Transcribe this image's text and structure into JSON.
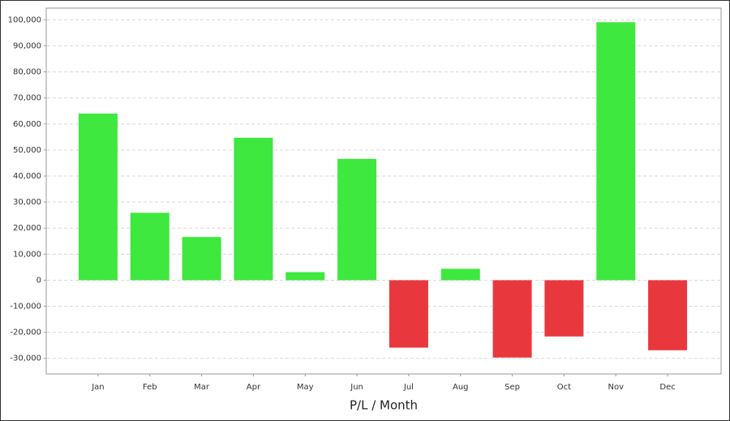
{
  "chart_data": {
    "type": "bar",
    "title": "P/L / Month",
    "categories": [
      "Jan",
      "Feb",
      "Mar",
      "Apr",
      "May",
      "Jun",
      "Jul",
      "Aug",
      "Sep",
      "Oct",
      "Nov",
      "Dec"
    ],
    "values": [
      64000,
      25900,
      16600,
      54700,
      3100,
      46600,
      -25900,
      4400,
      -29700,
      -21600,
      99100,
      -26900
    ],
    "positive_color": "#3ee83e",
    "negative_color": "#e8383e",
    "ylim": [
      -36000,
      104500
    ],
    "yticks": [
      {
        "value": -30000,
        "label": "-30,000"
      },
      {
        "value": -20000,
        "label": "-20,000"
      },
      {
        "value": -10000,
        "label": "-10,000"
      },
      0,
      {
        "value": 10000,
        "label": "10,000"
      },
      {
        "value": 20000,
        "label": "20,000"
      },
      {
        "value": 30000,
        "label": "30,000"
      },
      {
        "value": 40000,
        "label": "40,000"
      },
      {
        "value": 50000,
        "label": "50,000"
      },
      {
        "value": 60000,
        "label": "60,000"
      },
      {
        "value": 70000,
        "label": "70,000"
      },
      {
        "value": 80000,
        "label": "80,000"
      },
      {
        "value": 90000,
        "label": "90,000"
      },
      {
        "value": 100000,
        "label": "100,000"
      }
    ],
    "grid": true
  }
}
